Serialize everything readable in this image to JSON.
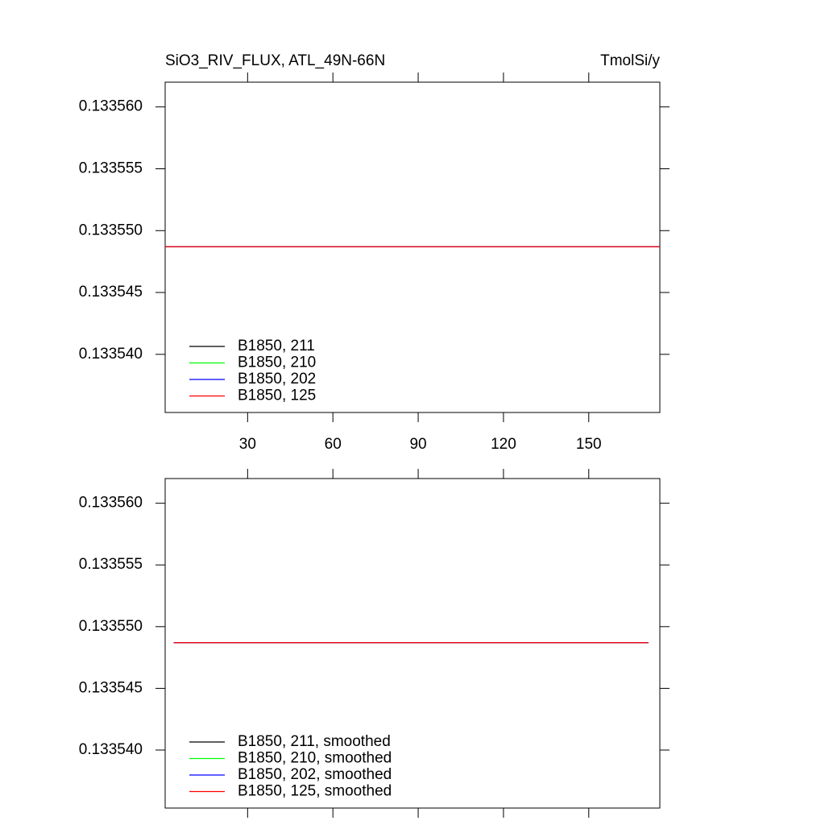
{
  "chart_data": [
    {
      "type": "line",
      "title": "SiO3_RIV_FLUX, ATL_49N-66N",
      "units": "TmolSi/y",
      "xlim": [
        1,
        175
      ],
      "xticks": [
        30,
        60,
        90,
        120,
        150
      ],
      "ylim": [
        0.1335353,
        0.133562
      ],
      "yticks": [
        {
          "value": 0.13356,
          "label": "0.133560"
        },
        {
          "value": 0.133555,
          "label": "0.133555"
        },
        {
          "value": 0.13355,
          "label": "0.133550"
        },
        {
          "value": 0.133545,
          "label": "0.133545"
        },
        {
          "value": 0.13354,
          "label": "0.133540"
        }
      ],
      "legend": "lower left",
      "series": [
        {
          "name": "B1850, 211",
          "color": "#000000",
          "x": [
            1,
            175
          ],
          "values": [
            0.1335487,
            0.1335487
          ]
        },
        {
          "name": "B1850, 210",
          "color": "#00ff00",
          "x": [
            1,
            175
          ],
          "values": [
            0.1335487,
            0.1335487
          ]
        },
        {
          "name": "B1850, 202",
          "color": "#0000ff",
          "x": [
            1,
            175
          ],
          "values": [
            0.1335487,
            0.1335487
          ]
        },
        {
          "name": "B1850, 125",
          "color": "#ff0000",
          "x": [
            1,
            175
          ],
          "values": [
            0.1335487,
            0.1335487
          ]
        }
      ]
    },
    {
      "type": "line",
      "xlim": [
        1,
        175
      ],
      "xticks": [
        30,
        60,
        90,
        120,
        150
      ],
      "ylim": [
        0.1335353,
        0.133562
      ],
      "yticks": [
        {
          "value": 0.13356,
          "label": "0.133560"
        },
        {
          "value": 0.133555,
          "label": "0.133555"
        },
        {
          "value": 0.13355,
          "label": "0.133550"
        },
        {
          "value": 0.133545,
          "label": "0.133545"
        },
        {
          "value": 0.13354,
          "label": "0.133540"
        }
      ],
      "legend": "lower left",
      "series": [
        {
          "name": "B1850, 211, smoothed",
          "color": "#000000",
          "x": [
            4,
            171
          ],
          "values": [
            0.1335487,
            0.1335487
          ]
        },
        {
          "name": "B1850, 210, smoothed",
          "color": "#00ff00",
          "x": [
            4,
            171
          ],
          "values": [
            0.1335487,
            0.1335487
          ]
        },
        {
          "name": "B1850, 202, smoothed",
          "color": "#0000ff",
          "x": [
            4,
            171
          ],
          "values": [
            0.1335487,
            0.1335487
          ]
        },
        {
          "name": "B1850, 125, smoothed",
          "color": "#ff0000",
          "x": [
            4,
            171
          ],
          "values": [
            0.1335487,
            0.1335487
          ]
        }
      ]
    }
  ]
}
